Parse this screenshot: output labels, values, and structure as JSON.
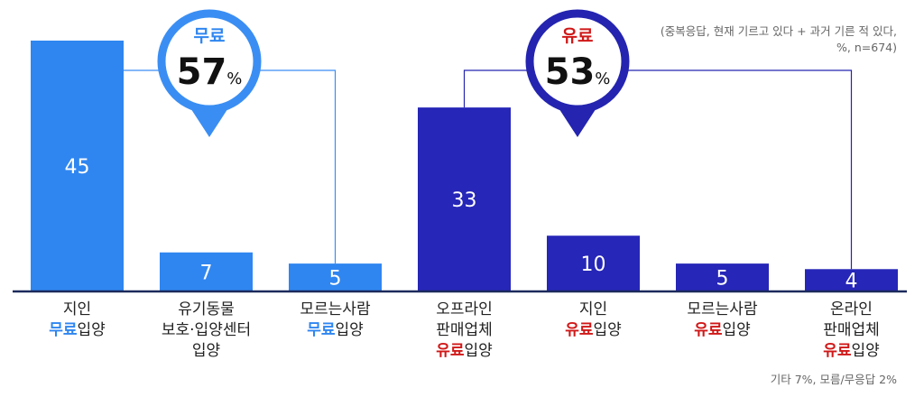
{
  "chart_data": {
    "type": "bar",
    "categories": [
      [
        "지인",
        [
          {
            "t": "무료",
            "hl": "free"
          },
          {
            "t": "입양"
          }
        ]
      ],
      [
        "유기동물",
        "보호·입양센터",
        "입양"
      ],
      [
        "모르는사람",
        [
          {
            "t": "무료",
            "hl": "free"
          },
          {
            "t": "입양"
          }
        ]
      ],
      [
        "오프라인",
        "판매업체",
        [
          {
            "t": "유료",
            "hl": "paid"
          },
          {
            "t": "입양"
          }
        ]
      ],
      [
        "지인",
        [
          {
            "t": "유료",
            "hl": "paid"
          },
          {
            "t": "입양"
          }
        ]
      ],
      [
        "모르는사람",
        [
          {
            "t": "유료",
            "hl": "paid"
          },
          {
            "t": "입양"
          }
        ]
      ],
      [
        "온라인",
        "판매업체",
        [
          {
            "t": "유료",
            "hl": "paid"
          },
          {
            "t": "입양"
          }
        ]
      ]
    ],
    "values": [
      45,
      7,
      5,
      33,
      10,
      5,
      4
    ],
    "groups": [
      {
        "key": "free",
        "label": "무료",
        "value": "57",
        "unit": "%",
        "members": [
          0,
          1,
          2
        ]
      },
      {
        "key": "paid",
        "label": "유료",
        "value": "53",
        "unit": "%",
        "members": [
          3,
          4,
          5,
          6
        ]
      }
    ],
    "ylim": [
      0,
      45
    ],
    "grid": false,
    "colors": {
      "free_bar": "#2f86f0",
      "paid_bar": "#2626b8",
      "free_accent": "#2f86f0",
      "free_ring": "#3a8ef3",
      "paid_ring": "#2424b0",
      "paid_text": "#d01818",
      "baseline": "#1c2a5c",
      "label_text": "#222222",
      "value_text": "#ffffff"
    }
  },
  "notes": {
    "respondents_line1": "(중복응답, 현재 기르고 있다 + 과거 기른 적 있다,",
    "respondents_line2": "%, n=674)",
    "others": "기타 7%, 모름/무응답 2%"
  }
}
